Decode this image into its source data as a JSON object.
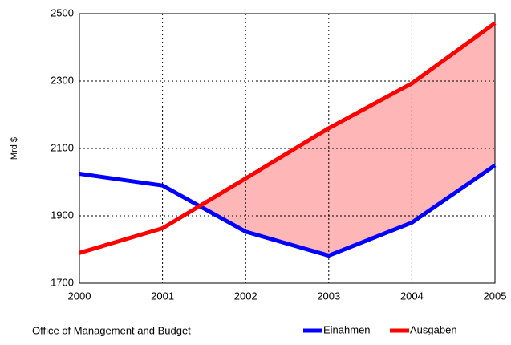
{
  "chart_data": {
    "type": "line",
    "y_label": "Mrd $",
    "annotation": "Office of Management and Budget",
    "x": [
      2000,
      2001,
      2002,
      2003,
      2004,
      2005
    ],
    "series": [
      {
        "name": "Einahmen",
        "color": "#0000ff",
        "values": [
          2025,
          1990,
          1853,
          1782,
          1880,
          2050
        ]
      },
      {
        "name": "Ausgaben",
        "color": "#ff0000",
        "values": [
          1790,
          1863,
          2011,
          2160,
          2293,
          2472
        ]
      }
    ],
    "fill_color": "#ffb6b6",
    "xlim": [
      2000,
      2005
    ],
    "xticks": [
      2000,
      2001,
      2002,
      2003,
      2004,
      2005
    ],
    "ylim": [
      1700,
      2500
    ],
    "yticks": [
      1700,
      1900,
      2100,
      2300,
      2500
    ],
    "grid": true
  }
}
